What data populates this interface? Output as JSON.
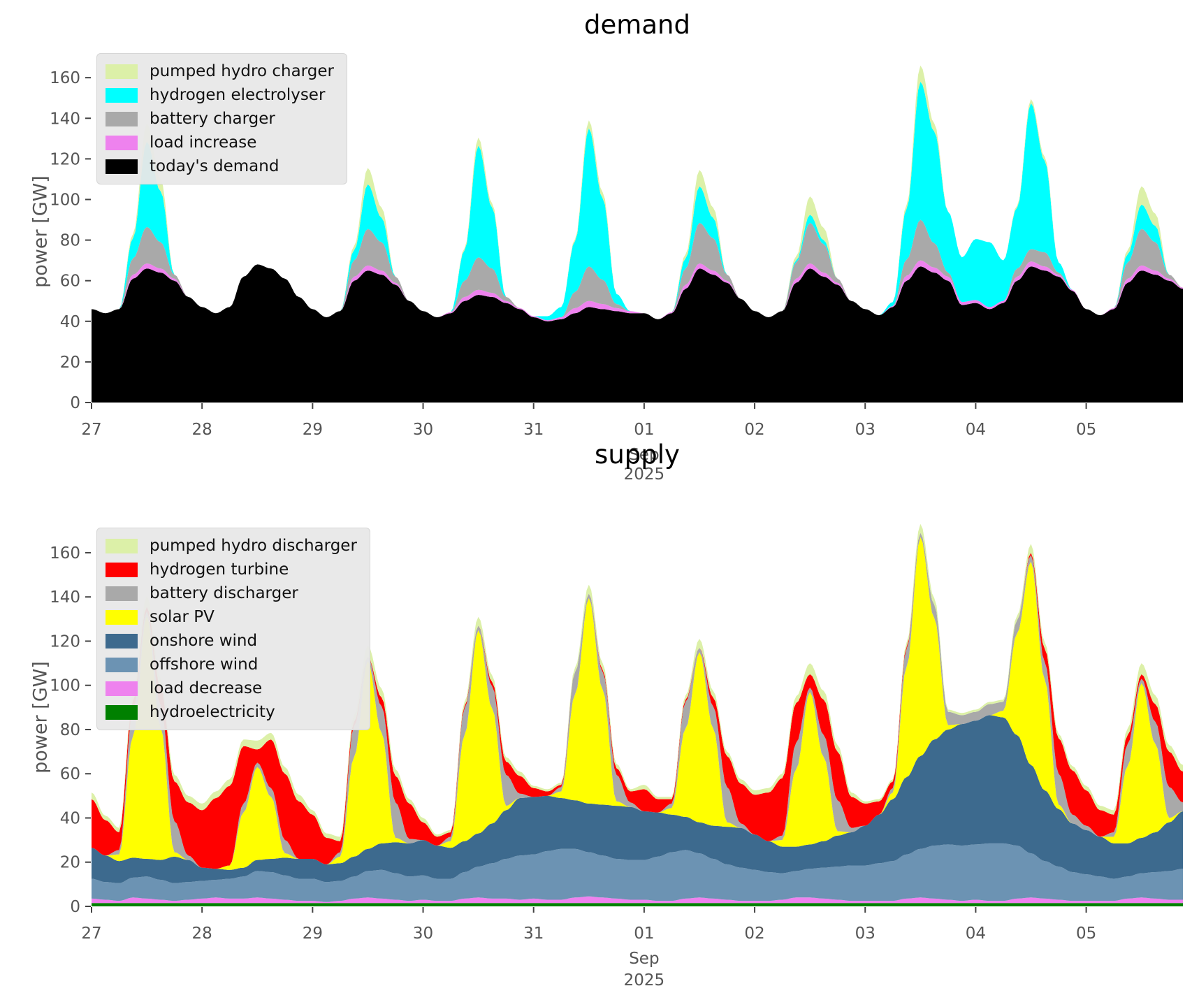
{
  "figure": {
    "background": "#ffffff",
    "tick_color": "#555555",
    "month_label": "Sep",
    "year_label": "2025",
    "xtick_labels": [
      "27",
      "28",
      "29",
      "30",
      "31",
      "01",
      "02",
      "03",
      "04",
      "05"
    ],
    "ytick_values": [
      0,
      20,
      40,
      60,
      80,
      100,
      120,
      140,
      160
    ],
    "x_step_days": 0.125
  },
  "chart_data": [
    {
      "type": "area",
      "stacked": true,
      "title": "demand",
      "ylabel": "power [GW]",
      "ylim": [
        0,
        169
      ],
      "grid": false,
      "legend_position": "upper-left",
      "series": [
        {
          "name": "today's demand",
          "color": "#000000",
          "values": [
            46,
            44,
            46,
            61,
            66,
            64,
            60,
            52,
            47,
            44,
            47,
            62,
            68,
            66,
            61,
            52,
            46,
            42,
            45,
            60,
            65,
            63,
            58,
            50,
            45,
            42,
            44,
            50,
            53,
            52,
            49,
            46,
            42,
            40,
            41,
            44,
            47,
            46,
            45,
            44,
            44,
            41,
            44,
            56,
            66,
            63,
            59,
            51,
            45,
            42,
            45,
            59,
            66,
            62,
            58,
            50,
            46,
            43,
            47,
            60,
            67,
            64,
            60,
            48,
            49,
            46,
            49,
            60,
            67,
            65,
            62,
            55,
            46,
            43,
            46,
            59,
            65,
            63,
            60,
            56
          ]
        },
        {
          "name": "load increase",
          "color": "#ee82ee",
          "values": [
            0,
            0,
            0,
            2,
            2.5,
            2,
            1,
            0,
            0,
            0,
            0,
            0,
            0,
            0,
            0,
            0,
            0,
            0,
            0,
            2,
            2.5,
            2,
            1,
            0,
            0,
            0,
            0.5,
            2,
            2.5,
            2,
            1,
            0.5,
            0.5,
            0.5,
            1,
            2.5,
            3,
            2.5,
            1.5,
            1,
            0,
            0,
            0.5,
            2,
            2.5,
            2,
            1,
            0,
            0,
            0,
            0,
            2,
            2.5,
            2,
            1,
            0,
            0,
            0,
            0.5,
            2.5,
            3,
            2.5,
            2,
            1.5,
            1.5,
            1,
            1,
            2,
            2.5,
            2,
            1,
            0.5,
            0,
            0,
            0.5,
            2,
            2.5,
            2,
            1,
            0.5
          ]
        },
        {
          "name": "battery charger",
          "color": "#a9a9a9",
          "values": [
            0,
            0,
            0,
            8,
            18,
            13,
            2,
            0,
            0,
            0,
            0,
            0,
            0,
            0,
            0,
            0,
            0,
            0,
            0,
            8,
            18,
            14,
            3,
            0,
            0,
            0,
            0,
            8,
            16,
            12,
            2,
            0,
            0,
            0,
            0,
            8,
            17,
            12,
            2,
            0,
            0,
            0,
            0,
            8,
            20,
            16,
            3,
            0,
            0,
            0,
            0,
            8,
            20,
            14,
            2,
            0,
            0,
            0,
            0,
            8,
            20,
            12,
            2,
            0,
            0,
            0,
            0,
            4,
            6,
            7,
            1,
            0,
            0,
            0,
            0,
            8,
            18,
            14,
            2,
            0
          ]
        },
        {
          "name": "hydrogen electrolyser",
          "color": "#00ffff",
          "values": [
            0,
            0,
            0,
            10,
            42,
            25,
            0,
            0,
            0,
            0,
            0,
            0,
            0,
            0,
            0,
            0,
            0,
            0,
            0,
            5,
            22,
            12,
            0,
            0,
            0,
            0,
            0,
            15,
            55,
            30,
            0,
            0,
            0,
            2,
            5,
            25,
            68,
            40,
            5,
            0,
            0,
            0,
            0,
            5,
            18,
            10,
            0,
            0,
            0,
            0,
            0,
            1,
            4,
            2,
            0,
            0,
            0,
            0,
            2,
            25,
            68,
            55,
            30,
            22,
            30,
            32,
            20,
            30,
            72,
            45,
            5,
            0,
            0,
            0,
            0,
            4,
            12,
            8,
            0,
            0
          ]
        },
        {
          "name": "pumped hydro charger",
          "color": "#dcf0a8",
          "values": [
            0,
            0,
            0,
            2,
            9,
            6,
            0,
            0,
            0,
            0,
            0,
            0,
            0,
            0,
            0,
            0,
            0,
            0,
            0,
            2,
            8,
            5,
            0,
            0,
            0,
            0,
            0,
            1,
            4,
            2,
            0,
            0,
            0,
            0,
            0,
            1,
            4,
            3,
            0,
            0,
            0,
            0,
            0,
            2,
            8,
            5,
            0,
            0,
            0,
            0,
            0,
            2,
            9,
            6,
            0,
            0,
            0,
            0,
            0,
            2,
            8,
            4,
            0,
            0,
            0,
            0,
            0,
            1,
            2,
            2,
            0,
            0,
            0,
            0,
            0,
            2,
            9,
            6,
            0,
            0
          ]
        }
      ]
    },
    {
      "type": "area",
      "stacked": true,
      "title": "supply",
      "ylabel": "power [GW]",
      "ylim": [
        0,
        172
      ],
      "grid": false,
      "legend_position": "upper-left",
      "series": [
        {
          "name": "hydroelectricity",
          "color": "#008000",
          "values": [
            1.5,
            1.5,
            1.5,
            1.5,
            1.5,
            1.5,
            1.5,
            1.5,
            1.5,
            1.5,
            1.5,
            1.5,
            1.5,
            1.5,
            1.5,
            1.5,
            1.5,
            1.5,
            1.5,
            1.5,
            1.5,
            1.5,
            1.5,
            1.5,
            1.5,
            1.5,
            1.5,
            1.5,
            1.5,
            1.5,
            1.5,
            1.5,
            1.5,
            1.5,
            1.5,
            1.5,
            1.5,
            1.5,
            1.5,
            1.5,
            1.5,
            1.5,
            1.5,
            1.5,
            1.5,
            1.5,
            1.5,
            1.5,
            1.5,
            1.5,
            1.5,
            1.5,
            1.5,
            1.5,
            1.5,
            1.5,
            1.5,
            1.5,
            1.5,
            1.5,
            1.5,
            1.5,
            1.5,
            1.5,
            1.5,
            1.5,
            1.5,
            1.5,
            1.5,
            1.5,
            1.5,
            1.5,
            1.5,
            1.5,
            1.5,
            1.5,
            1.5,
            1.5,
            1.5,
            1.5
          ]
        },
        {
          "name": "load decrease",
          "color": "#ee82ee",
          "values": [
            2,
            1.5,
            1,
            2.5,
            2,
            1.5,
            1,
            1.5,
            2,
            2.5,
            2,
            2,
            2.5,
            2,
            1.5,
            1,
            1,
            0.5,
            1,
            2,
            2.5,
            2,
            1.5,
            1,
            1.5,
            1,
            1,
            2,
            2.5,
            2,
            2,
            1.5,
            2,
            1.5,
            1.5,
            2.5,
            3,
            2.5,
            2,
            1.5,
            1.5,
            1,
            1,
            2,
            2.5,
            2,
            1.5,
            1,
            1,
            1,
            1.5,
            2.5,
            2.5,
            2,
            1.5,
            1,
            1,
            1,
            1,
            2,
            2.5,
            2,
            1.5,
            1,
            1.5,
            1,
            1,
            2,
            2.5,
            2,
            1.5,
            1,
            1,
            1,
            1,
            2,
            2.5,
            2,
            1.5,
            1.5
          ]
        },
        {
          "name": "offshore wind",
          "color": "#6c93b3",
          "values": [
            9,
            8,
            8,
            9,
            10,
            9,
            8,
            8,
            8,
            8,
            9,
            10,
            12,
            12,
            11,
            10,
            10,
            9,
            9,
            10,
            12,
            13,
            12,
            11,
            11,
            10,
            10,
            12,
            14,
            16,
            18,
            20,
            20,
            22,
            23,
            22,
            20,
            19,
            18,
            18,
            18,
            20,
            22,
            22,
            20,
            18,
            16,
            15,
            14,
            13,
            12,
            12,
            13,
            14,
            15,
            16,
            16,
            17,
            18,
            20,
            22,
            24,
            25,
            25,
            25,
            26,
            26,
            24,
            20,
            17,
            15,
            13,
            12,
            11,
            10,
            10,
            11,
            12,
            13,
            14
          ]
        },
        {
          "name": "onshore wind",
          "color": "#3d6a8e",
          "values": [
            14,
            12,
            10,
            9,
            8,
            9,
            12,
            10,
            6,
            5,
            4,
            4,
            5,
            6,
            8,
            9,
            9,
            8,
            8,
            9,
            10,
            12,
            14,
            15,
            16,
            15,
            14,
            14,
            15,
            18,
            22,
            26,
            26,
            25,
            23,
            22,
            22,
            23,
            24,
            24,
            22,
            20,
            17,
            15,
            14,
            15,
            17,
            18,
            16,
            14,
            12,
            11,
            11,
            12,
            14,
            15,
            18,
            22,
            28,
            35,
            42,
            48,
            52,
            55,
            56,
            58,
            57,
            50,
            40,
            32,
            26,
            22,
            20,
            18,
            16,
            15,
            16,
            18,
            22,
            26
          ]
        },
        {
          "name": "solar PV",
          "color": "#ffff00",
          "values": [
            0,
            0,
            3,
            55,
            110,
            60,
            2,
            0,
            0,
            0,
            2,
            25,
            42,
            28,
            2,
            0,
            0,
            0,
            3,
            45,
            85,
            50,
            2,
            0,
            0,
            0,
            3,
            48,
            92,
            52,
            2,
            0,
            0,
            0,
            3,
            48,
            93,
            52,
            2,
            0,
            0,
            0,
            3,
            40,
            77,
            44,
            2,
            0,
            0,
            0,
            3,
            35,
            69,
            38,
            2,
            0,
            0,
            0,
            3,
            50,
            99,
            55,
            2,
            0,
            0,
            0,
            3,
            46,
            92,
            50,
            2,
            0,
            0,
            0,
            3,
            35,
            70,
            40,
            2,
            0
          ]
        },
        {
          "name": "battery discharger",
          "color": "#a9a9a9",
          "values": [
            0,
            0,
            2,
            12,
            2,
            10,
            14,
            2,
            0,
            0,
            0,
            4,
            2,
            4,
            6,
            0,
            0,
            0,
            2,
            14,
            2,
            12,
            16,
            2,
            0,
            0,
            2,
            12,
            2,
            10,
            14,
            2,
            0,
            0,
            2,
            10,
            2,
            8,
            12,
            2,
            0,
            0,
            2,
            12,
            2,
            10,
            16,
            2,
            0,
            0,
            2,
            12,
            2,
            10,
            14,
            2,
            0,
            0,
            2,
            8,
            2,
            6,
            6,
            4,
            4,
            5,
            4,
            6,
            3,
            8,
            14,
            4,
            2,
            0,
            2,
            10,
            2,
            10,
            14,
            4
          ]
        },
        {
          "name": "hydrogen turbine",
          "color": "#ff0000",
          "values": [
            22,
            16,
            8,
            4,
            2,
            8,
            18,
            24,
            26,
            32,
            36,
            26,
            6,
            22,
            30,
            26,
            20,
            12,
            5,
            2,
            0,
            4,
            12,
            16,
            8,
            4,
            2,
            1,
            0,
            2,
            6,
            8,
            4,
            2,
            1,
            0,
            0,
            1,
            3,
            5,
            10,
            6,
            2,
            1,
            0,
            4,
            14,
            18,
            18,
            22,
            26,
            18,
            6,
            16,
            22,
            14,
            10,
            6,
            3,
            1,
            0,
            0,
            0,
            0,
            0,
            0,
            0,
            0,
            1,
            6,
            16,
            20,
            16,
            12,
            8,
            4,
            2,
            8,
            16,
            14
          ]
        },
        {
          "name": "pumped hydro discharger",
          "color": "#dcf0a8",
          "values": [
            3,
            2,
            2,
            3,
            5,
            4,
            3,
            3,
            3,
            3,
            3,
            3,
            4,
            3,
            3,
            3,
            2,
            2,
            2,
            3,
            5,
            4,
            3,
            2,
            2,
            1,
            1,
            2,
            4,
            3,
            2,
            2,
            1,
            1,
            1,
            2,
            4,
            3,
            2,
            1,
            2,
            1,
            1,
            2,
            4,
            3,
            2,
            2,
            2,
            2,
            2,
            3,
            5,
            4,
            3,
            2,
            1,
            1,
            1,
            2,
            4,
            3,
            1,
            1,
            1,
            1,
            1,
            2,
            4,
            3,
            2,
            2,
            2,
            2,
            2,
            3,
            5,
            4,
            3,
            3
          ]
        }
      ]
    }
  ]
}
